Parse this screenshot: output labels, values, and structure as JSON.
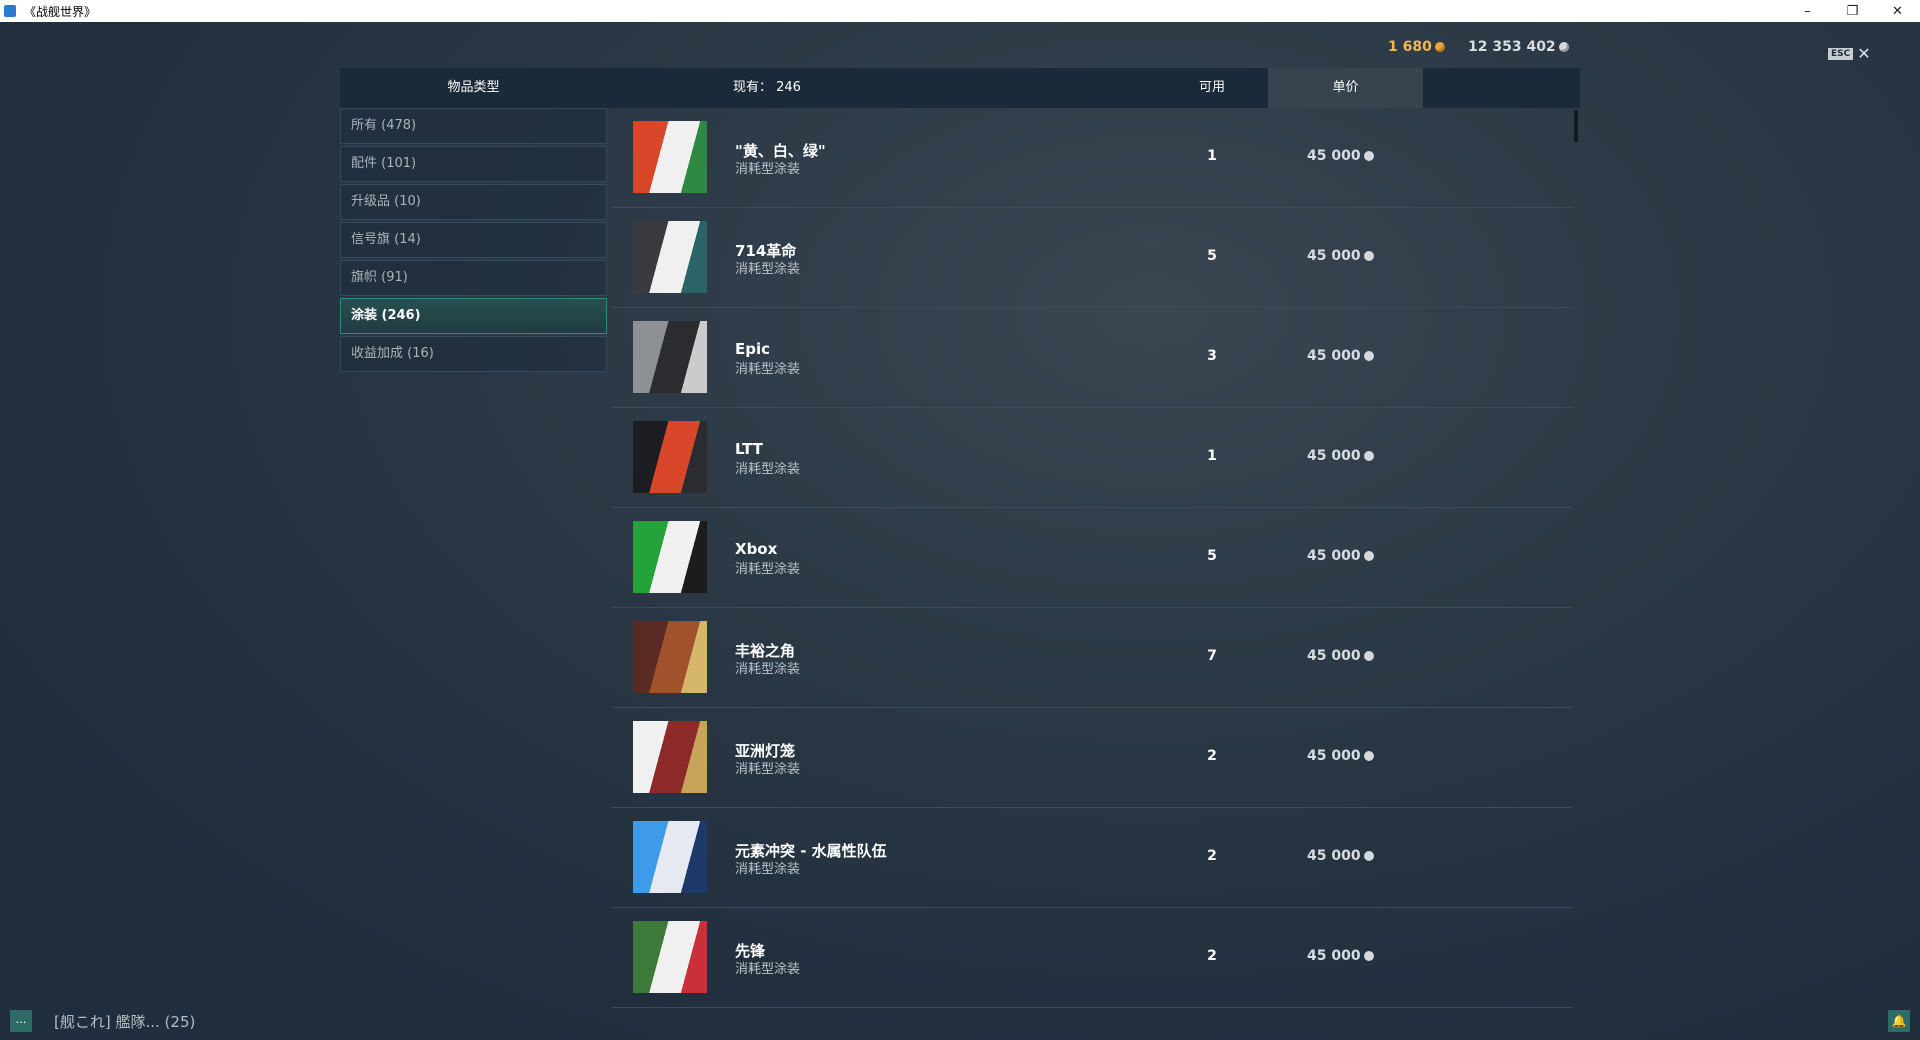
{
  "window": {
    "title": "《战舰世界》",
    "minimize": "–",
    "restore": "❐",
    "close": "✕"
  },
  "currency": {
    "gold": "1 680",
    "silver": "12 353 402"
  },
  "esc": {
    "key": "ESC",
    "close": "✕"
  },
  "header": {
    "category": "物品类型",
    "count": "现有： 246",
    "available": "可用",
    "price": "单价"
  },
  "sidebar": {
    "items": [
      {
        "label": "所有 (478)"
      },
      {
        "label": "配件 (101)"
      },
      {
        "label": "升级品 (10)"
      },
      {
        "label": "信号旗 (14)"
      },
      {
        "label": "旗帜 (91)"
      },
      {
        "label": "涂装 (246)",
        "active": true
      },
      {
        "label": "收益加成 (16)"
      }
    ]
  },
  "rows": [
    {
      "name": "\"黄、白、绿\"",
      "type": "消耗型涂装",
      "available": "1",
      "price": "45 000",
      "colors": [
        "#d9472b",
        "#f0f0f0",
        "#2e8a43"
      ]
    },
    {
      "name": "714革命",
      "type": "消耗型涂装",
      "available": "5",
      "price": "45 000",
      "colors": [
        "#3a3b40",
        "#f0f0f0",
        "#2a6466"
      ]
    },
    {
      "name": "Epic",
      "type": "消耗型涂装",
      "available": "3",
      "price": "45 000",
      "colors": [
        "#8d9195",
        "#2a2c2f",
        "#c9cbcd"
      ]
    },
    {
      "name": "LTT",
      "type": "消耗型涂装",
      "available": "1",
      "price": "45 000",
      "colors": [
        "#1c1d20",
        "#d9472b",
        "#2a2c2f"
      ]
    },
    {
      "name": "Xbox",
      "type": "消耗型涂装",
      "available": "5",
      "price": "45 000",
      "colors": [
        "#26a23a",
        "#f0f0f0",
        "#1b1c1e"
      ]
    },
    {
      "name": "丰裕之角",
      "type": "消耗型涂装",
      "available": "7",
      "price": "45 000",
      "colors": [
        "#5a2a24",
        "#a0522d",
        "#d6b66a"
      ]
    },
    {
      "name": "亚洲灯笼",
      "type": "消耗型涂装",
      "available": "2",
      "price": "45 000",
      "colors": [
        "#f0f0f0",
        "#8c2a2a",
        "#c7a45a"
      ]
    },
    {
      "name": "元素冲突 - 水属性队伍",
      "type": "消耗型涂装",
      "available": "2",
      "price": "45 000",
      "colors": [
        "#3d9be9",
        "#e6e8f2",
        "#1e3a6a"
      ]
    },
    {
      "name": "先锋",
      "type": "消耗型涂装",
      "available": "2",
      "price": "45 000",
      "colors": [
        "#3e7a3a",
        "#f0f0f0",
        "#c9303a"
      ]
    }
  ],
  "footer": {
    "chat": "…",
    "clan": "[舰これ]  艦隊... (25)",
    "bell": "🔔"
  }
}
